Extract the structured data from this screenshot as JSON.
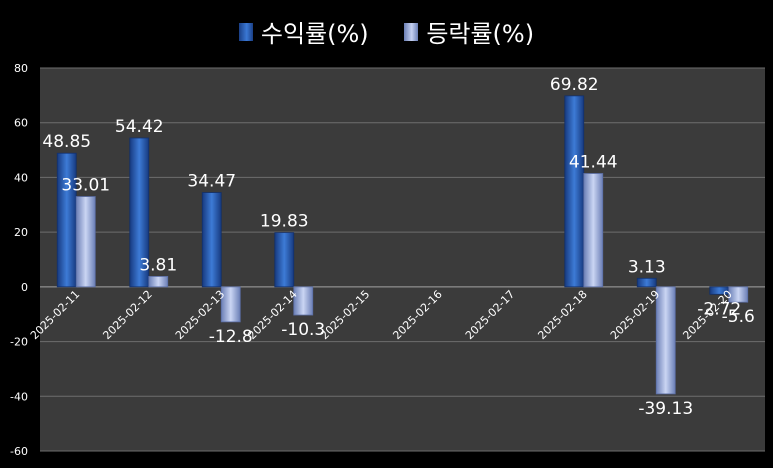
{
  "chart_data": {
    "type": "bar",
    "categories": [
      "2025-02-11",
      "2025-02-12",
      "2025-02-13",
      "2025-02-14",
      "2025-02-15",
      "2025-02-16",
      "2025-02-17",
      "2025-02-18",
      "2025-02-19",
      "2025-02-20"
    ],
    "series": [
      {
        "name": "수익률(%)",
        "values": [
          48.85,
          54.42,
          34.47,
          19.83,
          null,
          null,
          null,
          69.82,
          3.13,
          -2.72
        ],
        "color": "#2f62b8"
      },
      {
        "name": "등락률(%)",
        "values": [
          33.01,
          3.81,
          -12.8,
          -10.3,
          null,
          null,
          null,
          41.44,
          -39.13,
          -5.6
        ],
        "color": "#a9b9e6"
      }
    ],
    "ylim": [
      -60,
      80
    ],
    "yticks": [
      -60,
      -40,
      -20,
      0,
      20,
      40,
      60,
      80
    ],
    "grid": true,
    "legend": "top"
  },
  "colors": {
    "background": "#000000",
    "plot_area": "#3b3b3b",
    "grid": "#6e6e6e"
  }
}
